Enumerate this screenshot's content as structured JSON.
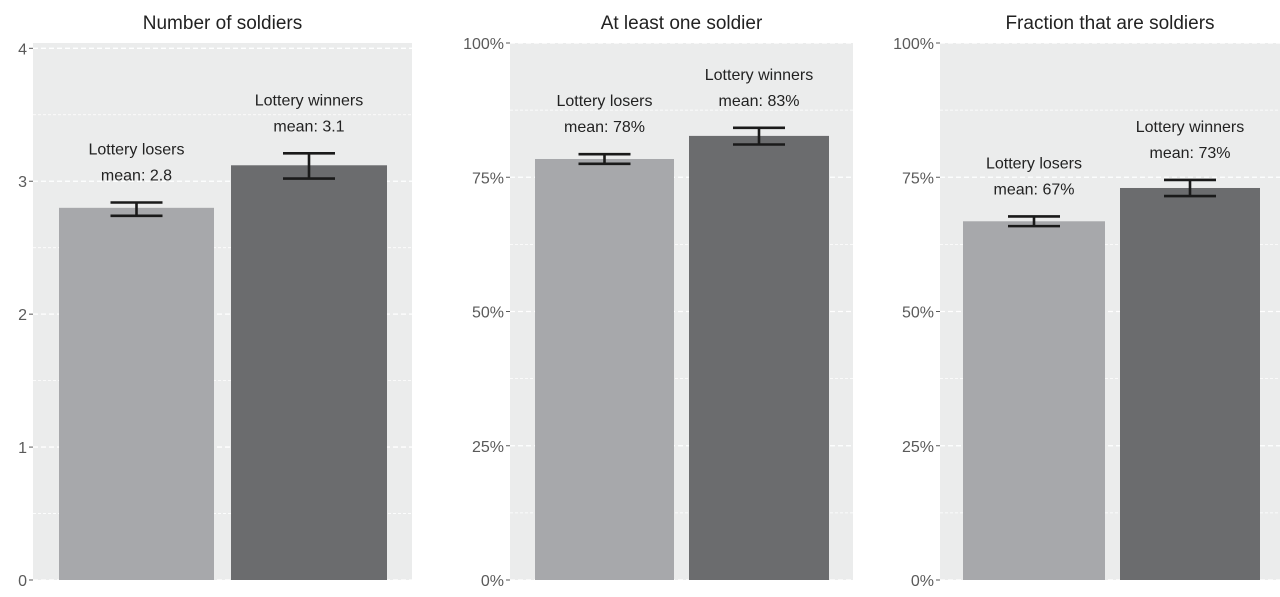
{
  "chart_data": [
    {
      "type": "bar",
      "title": "Number of soldiers",
      "categories": [
        "Lottery losers",
        "Lottery winners"
      ],
      "values": [
        2.8,
        3.12
      ],
      "error_bars": [
        [
          2.74,
          2.84
        ],
        [
          3.02,
          3.21
        ]
      ],
      "bar_labels": [
        [
          "Lottery losers",
          "mean: 2.8"
        ],
        [
          "Lottery winners",
          "mean: 3.1"
        ]
      ],
      "ylim": [
        0,
        4.04
      ],
      "yticks": [
        0,
        1,
        2,
        3,
        4
      ],
      "ytick_labels": [
        "0",
        "1",
        "2",
        "3",
        "4"
      ],
      "xlabel": "",
      "ylabel": "",
      "grid": true
    },
    {
      "type": "bar",
      "title": "At least one soldier",
      "categories": [
        "Lottery losers",
        "Lottery winners"
      ],
      "values": [
        0.784,
        0.827
      ],
      "error_bars": [
        [
          0.775,
          0.793
        ],
        [
          0.811,
          0.842
        ]
      ],
      "bar_labels": [
        [
          "Lottery losers",
          "mean: 78%"
        ],
        [
          "Lottery winners",
          "mean: 83%"
        ]
      ],
      "ylim": [
        0,
        1.0
      ],
      "yticks": [
        0,
        0.25,
        0.5,
        0.75,
        1.0
      ],
      "ytick_labels": [
        "0%",
        "25%",
        "50%",
        "75%",
        "100%"
      ],
      "xlabel": "",
      "ylabel": "",
      "grid": true
    },
    {
      "type": "bar",
      "title": "Fraction that are soldiers",
      "categories": [
        "Lottery losers",
        "Lottery winners"
      ],
      "values": [
        0.668,
        0.73
      ],
      "error_bars": [
        [
          0.659,
          0.677
        ],
        [
          0.715,
          0.745
        ]
      ],
      "bar_labels": [
        [
          "Lottery losers",
          "mean: 67%"
        ],
        [
          "Lottery winners",
          "mean: 73%"
        ]
      ],
      "ylim": [
        0,
        1.0
      ],
      "yticks": [
        0,
        0.25,
        0.5,
        0.75,
        1.0
      ],
      "ytick_labels": [
        "0%",
        "25%",
        "50%",
        "75%",
        "100%"
      ],
      "xlabel": "",
      "ylabel": "",
      "grid": true
    }
  ],
  "colors": {
    "panel_bg": "#ebecec",
    "losers_bar": "#a7a8ab",
    "winners_bar": "#6b6c6e",
    "error_bar": "#1a1a1a",
    "gridline": "#ffffff",
    "axis_text": "#5a5a5a",
    "title_text": "#222222",
    "label_text": "#222222"
  }
}
